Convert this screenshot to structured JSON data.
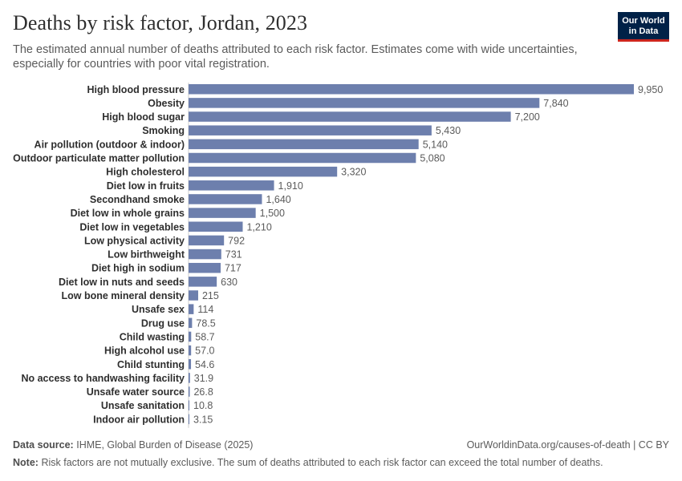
{
  "header": {
    "title": "Deaths by risk factor, Jordan, 2023",
    "subtitle": "The estimated annual number of deaths attributed to each risk factor. Estimates come with wide uncertainties, especially for countries with poor vital registration."
  },
  "logo": {
    "line1": "Our World",
    "line2": "in Data"
  },
  "colors": {
    "bar": "#6d7fad",
    "label": "#2e2e2e",
    "value": "#5b5b5b",
    "axis": "#cccccc"
  },
  "chart_data": {
    "type": "bar",
    "orientation": "horizontal",
    "title": "Deaths by risk factor, Jordan, 2023",
    "xlabel": "",
    "ylabel": "",
    "xlim": [
      0,
      9950
    ],
    "categories": [
      "High blood pressure",
      "Obesity",
      "High blood sugar",
      "Smoking",
      "Air pollution (outdoor & indoor)",
      "Outdoor particulate matter pollution",
      "High cholesterol",
      "Diet low in fruits",
      "Secondhand smoke",
      "Diet low in whole grains",
      "Diet low in vegetables",
      "Low physical activity",
      "Low birthweight",
      "Diet high in sodium",
      "Diet low in nuts and seeds",
      "Low bone mineral density",
      "Unsafe sex",
      "Drug use",
      "Child wasting",
      "High alcohol use",
      "Child stunting",
      "No access to handwashing facility",
      "Unsafe water source",
      "Unsafe sanitation",
      "Indoor air pollution"
    ],
    "values": [
      9950,
      7840,
      7200,
      5430,
      5140,
      5080,
      3320,
      1910,
      1640,
      1500,
      1210,
      792,
      731,
      717,
      630,
      215,
      114,
      78.5,
      58.7,
      57.0,
      54.6,
      31.9,
      26.8,
      10.8,
      3.15
    ],
    "value_labels": [
      "9,950",
      "7,840",
      "7,200",
      "5,430",
      "5,140",
      "5,080",
      "3,320",
      "1,910",
      "1,640",
      "1,500",
      "1,210",
      "792",
      "731",
      "717",
      "630",
      "215",
      "114",
      "78.5",
      "58.7",
      "57.0",
      "54.6",
      "31.9",
      "26.8",
      "10.8",
      "3.15"
    ]
  },
  "footer": {
    "source_label": "Data source:",
    "source_text": "IHME, Global Burden of Disease (2025)",
    "url_text": "OurWorldinData.org/causes-of-death | CC BY",
    "note_label": "Note:",
    "note_text": "Risk factors are not mutually exclusive. The sum of deaths attributed to each risk factor can exceed the total number of deaths."
  }
}
